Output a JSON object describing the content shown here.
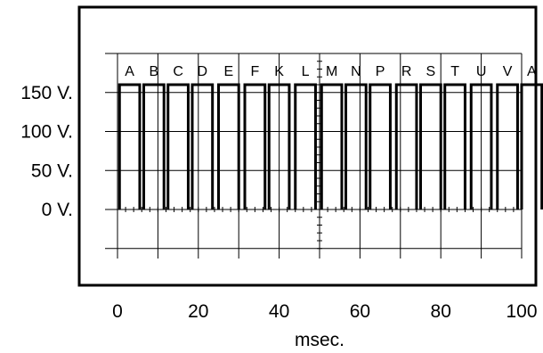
{
  "chart_data": {
    "type": "line",
    "title": "",
    "xlabel": "msec.",
    "ylabel": "",
    "xlim": [
      -2,
      104
    ],
    "ylim": [
      -50,
      200
    ],
    "x_ticks": [
      {
        "value": 0,
        "label": "0"
      },
      {
        "value": 20,
        "label": "20"
      },
      {
        "value": 40,
        "label": "40"
      },
      {
        "value": 60,
        "label": "60"
      },
      {
        "value": 80,
        "label": "80"
      },
      {
        "value": 100,
        "label": "100"
      }
    ],
    "y_ticks": [
      {
        "value": 150,
        "label": "150 V."
      },
      {
        "value": 100,
        "label": "100 V."
      },
      {
        "value": 50,
        "label": "50 V."
      },
      {
        "value": 0,
        "label": "0 V."
      }
    ],
    "grid": true,
    "pulse_amplitude": 160,
    "pulse_width": 5,
    "pulses": [
      {
        "label": "A",
        "start": 0.5
      },
      {
        "label": "B",
        "start": 6.5
      },
      {
        "label": "C",
        "start": 12.5
      },
      {
        "label": "D",
        "start": 18.5
      },
      {
        "label": "E",
        "start": 25
      },
      {
        "label": "F",
        "start": 31.5
      },
      {
        "label": "K",
        "start": 37.5
      },
      {
        "label": "L",
        "start": 44
      },
      {
        "label": "M",
        "start": 50.5
      },
      {
        "label": "N",
        "start": 56.5
      },
      {
        "label": "P",
        "start": 62.5
      },
      {
        "label": "R",
        "start": 69
      },
      {
        "label": "S",
        "start": 75
      },
      {
        "label": "T",
        "start": 81
      },
      {
        "label": "U",
        "start": 87.5
      },
      {
        "label": "V",
        "start": 94
      },
      {
        "label": "A",
        "start": 100
      }
    ]
  }
}
